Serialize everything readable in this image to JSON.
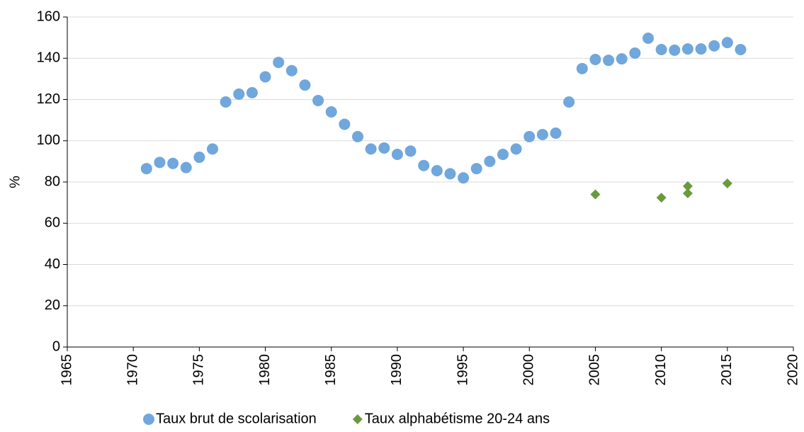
{
  "chart_data": {
    "type": "scatter",
    "ylabel": "%",
    "xlim": [
      1965,
      2020
    ],
    "xticks": [
      1965,
      1970,
      1975,
      1980,
      1985,
      1990,
      1995,
      2000,
      2005,
      2010,
      2015,
      2020
    ],
    "ylim": [
      0,
      160
    ],
    "yticks": [
      0,
      20,
      40,
      60,
      80,
      100,
      120,
      140,
      160
    ],
    "grid": true,
    "legend": "bottom",
    "series": [
      {
        "name": "Taux brut de scolarisation",
        "color": "#70a7dc",
        "marker": "circle",
        "x": [
          1971,
          1972,
          1973,
          1974,
          1975,
          1976,
          1977,
          1978,
          1979,
          1980,
          1981,
          1982,
          1983,
          1984,
          1985,
          1986,
          1987,
          1988,
          1989,
          1990,
          1991,
          1992,
          1993,
          1994,
          1995,
          1996,
          1997,
          1998,
          1999,
          2000,
          2001,
          2002,
          2003,
          2004,
          2005,
          2006,
          2007,
          2008,
          2009,
          2010,
          2011,
          2012,
          2013,
          2014,
          2015,
          2016
        ],
        "values": [
          86.5,
          89.5,
          89,
          87,
          92,
          96,
          118.8,
          122.6,
          123.3,
          131,
          138,
          134,
          127,
          119.5,
          114,
          108,
          102,
          96,
          96.5,
          93.4,
          95,
          88,
          85.5,
          84,
          82,
          86.5,
          90,
          93.4,
          96,
          102,
          103,
          103.7,
          118.8,
          135,
          139.4,
          139,
          139.7,
          142.5,
          149.7,
          144.2,
          143.9,
          144.5,
          144.5,
          146,
          147.6,
          144.2
        ]
      },
      {
        "name": "Taux alphabétisme 20-24 ans",
        "color": "#6a9a3f",
        "marker": "diamond",
        "x": [
          2005,
          2010,
          2012,
          2012,
          2015
        ],
        "values": [
          74,
          72.4,
          78,
          74.5,
          79.3
        ]
      }
    ]
  }
}
